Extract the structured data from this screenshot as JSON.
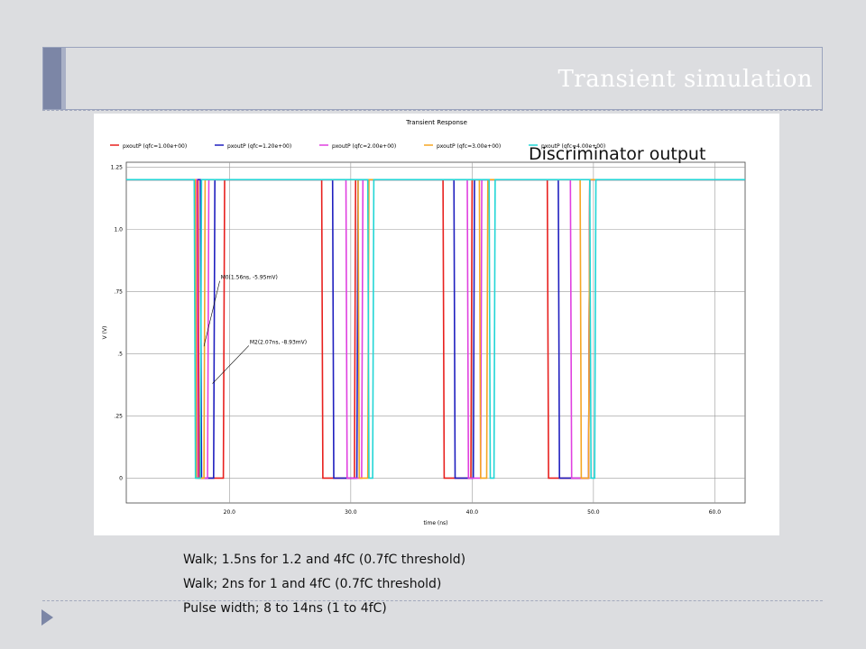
{
  "slide": {
    "title": "Transient simulation",
    "overlay_label": "Discriminator output",
    "notes": [
      "Walk; 1.5ns for 1.2 and 4fC (0.7fC threshold)",
      "Walk; 2ns for 1 and 4fC (0.7fC threshold)",
      "Pulse width; 8 to 14ns (1 to 4fC)"
    ],
    "accent_color": "#7c86a6"
  },
  "chart_data": {
    "type": "line",
    "title": "Transient Response",
    "xlabel": "time (ns)",
    "ylabel": "V (V)",
    "xlim": [
      11.5,
      62.5
    ],
    "ylim": [
      -0.1,
      1.27
    ],
    "xticks": [
      {
        "value": 20,
        "label": "20.0"
      },
      {
        "value": 30,
        "label": "30.0"
      },
      {
        "value": 40,
        "label": "40.0"
      },
      {
        "value": 50,
        "label": "50.0"
      },
      {
        "value": 60,
        "label": "60.0"
      }
    ],
    "yticks": [
      {
        "value": 0,
        "label": "0"
      },
      {
        "value": 0.25,
        "label": ".25"
      },
      {
        "value": 0.5,
        "label": ".5"
      },
      {
        "value": 0.75,
        "label": ".75"
      },
      {
        "value": 1.0,
        "label": "1.0"
      },
      {
        "value": 1.25,
        "label": "1.25"
      }
    ],
    "grid": true,
    "legend_position": "top",
    "series": [
      {
        "name": "pxoutP (qfc=1.00e+00)",
        "color": "#e8201e",
        "x": [
          11.5,
          17.4,
          17.5,
          19.5,
          19.6,
          27.6,
          27.7,
          30.3,
          30.4,
          37.6,
          37.7,
          39.9,
          40.0,
          46.2,
          46.3,
          49.6,
          49.7,
          62.5
        ],
        "y": [
          1.2,
          1.2,
          0,
          0,
          1.2,
          1.2,
          0,
          0,
          1.2,
          1.2,
          0,
          0,
          1.2,
          1.2,
          0,
          0,
          1.2,
          1.2
        ]
      },
      {
        "name": "pxoutP (qfc=1.20e+00)",
        "color": "#1f1fbf",
        "x": [
          11.5,
          17.6,
          17.7,
          18.7,
          18.8,
          28.5,
          28.6,
          30.5,
          30.6,
          38.5,
          38.6,
          40.1,
          40.2,
          47.1,
          47.2,
          49.6,
          49.7,
          62.5
        ],
        "y": [
          1.2,
          1.2,
          0,
          0,
          1.2,
          1.2,
          0,
          0,
          1.2,
          1.2,
          0,
          0,
          1.2,
          1.2,
          0,
          0,
          1.2,
          1.2
        ]
      },
      {
        "name": "pxoutP (qfc=2.00e+00)",
        "color": "#e040e0",
        "x": [
          11.5,
          17.3,
          17.4,
          18.2,
          18.3,
          29.6,
          29.7,
          30.9,
          31.0,
          39.6,
          39.7,
          40.7,
          40.8,
          48.1,
          48.2,
          49.6,
          49.7,
          62.5
        ],
        "y": [
          1.2,
          1.2,
          0,
          0,
          1.2,
          1.2,
          0,
          0,
          1.2,
          1.2,
          0,
          0,
          1.2,
          1.2,
          0,
          0,
          1.2,
          1.2
        ]
      },
      {
        "name": "pxoutP (qfc=3.00e+00)",
        "color": "#f5a623",
        "x": [
          11.5,
          17.2,
          17.3,
          17.9,
          18.0,
          30.6,
          30.7,
          31.4,
          31.5,
          40.6,
          40.7,
          41.2,
          41.3,
          48.9,
          49.0,
          49.6,
          49.7,
          62.5
        ],
        "y": [
          1.2,
          1.2,
          0,
          0,
          1.2,
          1.2,
          0,
          0,
          1.2,
          1.2,
          0,
          0,
          1.2,
          1.2,
          0,
          0,
          1.2,
          1.2
        ]
      },
      {
        "name": "pxoutP (qfc=4.00e+00)",
        "color": "#22d6d6",
        "x": [
          11.5,
          17.1,
          17.2,
          17.6,
          17.7,
          31.4,
          31.5,
          31.8,
          31.9,
          41.4,
          41.5,
          41.8,
          41.9,
          49.7,
          49.8,
          50.1,
          50.2,
          62.5
        ],
        "y": [
          1.2,
          1.2,
          0,
          0,
          1.2,
          1.2,
          0,
          0,
          1.2,
          1.2,
          0,
          0,
          1.2,
          1.2,
          0,
          0,
          1.2,
          1.2
        ]
      }
    ],
    "annotations": [
      {
        "text": "M0(1.56ns, -5.95mV)",
        "x": 19.2,
        "y": 0.8,
        "point_x": 17.9,
        "point_y": 0.53
      },
      {
        "text": "M2(2.07ns, -8.93mV)",
        "x": 21.6,
        "y": 0.54,
        "point_x": 18.6,
        "point_y": 0.38
      }
    ]
  }
}
